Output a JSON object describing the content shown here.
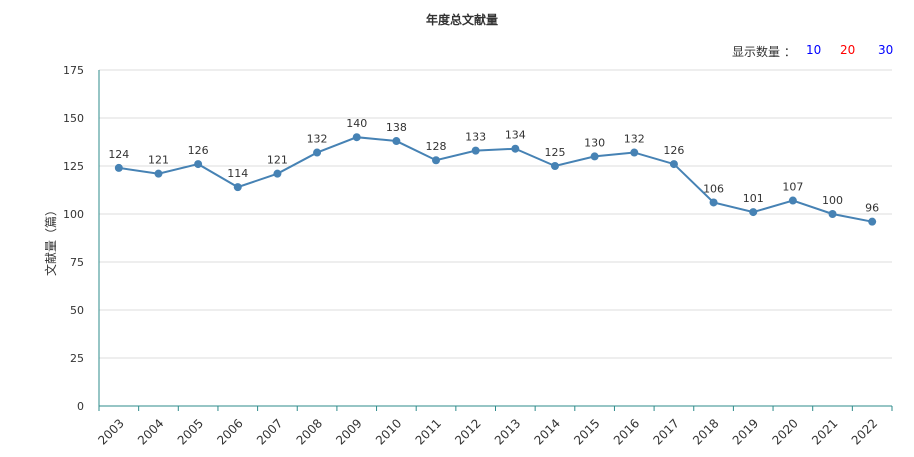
{
  "controls": {
    "label": "显示数量 ：",
    "options": [
      {
        "label": "10",
        "color": "#0000ff"
      },
      {
        "label": "20",
        "color": "#ff0000"
      },
      {
        "label": "30",
        "color": "#0000ff"
      }
    ]
  },
  "chart_data": {
    "type": "line",
    "title": "年度总文献量",
    "xlabel": "",
    "ylabel": "文献量（篇）",
    "ylim": [
      0,
      175
    ],
    "yticks": [
      0,
      25,
      50,
      75,
      100,
      125,
      150,
      175
    ],
    "grid": true,
    "color": "#4682b4",
    "axis_color": "#2e8b8b",
    "categories": [
      "2003",
      "2004",
      "2005",
      "2006",
      "2007",
      "2008",
      "2009",
      "2010",
      "2011",
      "2012",
      "2013",
      "2014",
      "2015",
      "2016",
      "2017",
      "2018",
      "2019",
      "2020",
      "2021",
      "2022"
    ],
    "series": [
      {
        "values": [
          124,
          121,
          126,
          114,
          121,
          132,
          140,
          138,
          128,
          133,
          134,
          125,
          130,
          132,
          126,
          106,
          101,
          107,
          100,
          96
        ]
      }
    ]
  }
}
